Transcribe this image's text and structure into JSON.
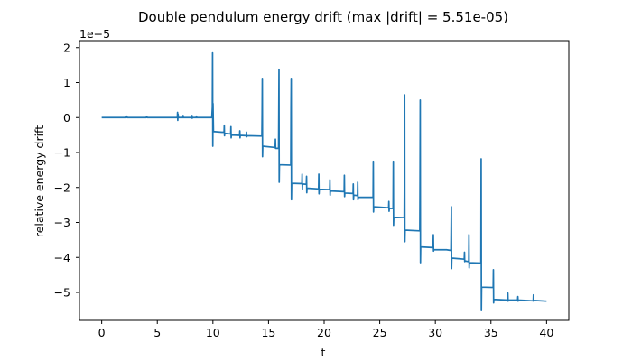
{
  "chart_data": {
    "type": "line",
    "title": "Double pendulum energy drift (max |drift| = 5.51e-05)",
    "xlabel": "t",
    "ylabel": "relative energy drift",
    "y_offset_text": "1e−5",
    "y_scale": 1e-05,
    "xlim": [
      -2,
      42
    ],
    "ylim": [
      -5.8,
      2.2
    ],
    "x_ticks": [
      0,
      5,
      10,
      15,
      20,
      25,
      30,
      35,
      40
    ],
    "x_tick_labels": [
      "0",
      "5",
      "10",
      "15",
      "20",
      "25",
      "30",
      "35",
      "40"
    ],
    "y_ticks": [
      2,
      1,
      0,
      -1,
      -2,
      -3,
      -4,
      -5
    ],
    "y_tick_labels": [
      "2",
      "1",
      "0",
      "−1",
      "−2",
      "−3",
      "−4",
      "−5"
    ],
    "grid": false,
    "legend": "none",
    "series": [
      {
        "color": "#1f77b4",
        "points": [
          [
            0,
            0
          ],
          [
            2.2,
            0
          ],
          [
            2.25,
            0.04
          ],
          [
            2.3,
            0
          ],
          [
            4,
            0
          ],
          [
            4.05,
            0.03
          ],
          [
            4.1,
            0
          ],
          [
            6.8,
            0
          ],
          [
            6.82,
            0.15
          ],
          [
            6.84,
            -0.08
          ],
          [
            6.86,
            0.1
          ],
          [
            6.9,
            0
          ],
          [
            7.3,
            0
          ],
          [
            7.32,
            0.06
          ],
          [
            7.34,
            0
          ],
          [
            8.1,
            0
          ],
          [
            8.12,
            0.06
          ],
          [
            8.14,
            -0.02
          ],
          [
            8.16,
            0
          ],
          [
            8.5,
            0
          ],
          [
            8.52,
            0.04
          ],
          [
            8.54,
            0
          ],
          [
            9.9,
            0
          ],
          [
            9.95,
            0.3
          ],
          [
            9.97,
            1.85
          ],
          [
            9.99,
            -0.82
          ],
          [
            10.01,
            0.4
          ],
          [
            10.05,
            -0.4
          ],
          [
            10.8,
            -0.42
          ],
          [
            11.0,
            -0.42
          ],
          [
            11.02,
            -0.22
          ],
          [
            11.04,
            -0.52
          ],
          [
            11.06,
            -0.45
          ],
          [
            11.6,
            -0.47
          ],
          [
            11.62,
            -0.26
          ],
          [
            11.64,
            -0.58
          ],
          [
            11.66,
            -0.5
          ],
          [
            12.4,
            -0.51
          ],
          [
            12.42,
            -0.38
          ],
          [
            12.44,
            -0.58
          ],
          [
            12.46,
            -0.51
          ],
          [
            13.0,
            -0.52
          ],
          [
            13.02,
            -0.42
          ],
          [
            13.04,
            -0.55
          ],
          [
            13.06,
            -0.52
          ],
          [
            14.4,
            -0.53
          ],
          [
            14.42,
            0.1
          ],
          [
            14.44,
            1.12
          ],
          [
            14.46,
            -1.12
          ],
          [
            14.48,
            -0.82
          ],
          [
            15.4,
            -0.85
          ],
          [
            15.6,
            -0.86
          ],
          [
            15.62,
            -0.62
          ],
          [
            15.64,
            -0.88
          ],
          [
            15.9,
            -0.88
          ],
          [
            15.92,
            0.2
          ],
          [
            15.94,
            1.38
          ],
          [
            15.96,
            -1.85
          ],
          [
            15.98,
            -1.35
          ],
          [
            16.9,
            -1.36
          ],
          [
            17.0,
            -1.36
          ],
          [
            17.02,
            0.3
          ],
          [
            17.04,
            1.12
          ],
          [
            17.06,
            -2.35
          ],
          [
            17.08,
            -1.88
          ],
          [
            18.0,
            -1.89
          ],
          [
            18.02,
            -1.62
          ],
          [
            18.04,
            -2.05
          ],
          [
            18.06,
            -1.9
          ],
          [
            18.4,
            -1.91
          ],
          [
            18.42,
            -1.68
          ],
          [
            18.44,
            -2.15
          ],
          [
            18.46,
            -2.02
          ],
          [
            19.5,
            -2.04
          ],
          [
            19.52,
            -1.62
          ],
          [
            19.54,
            -2.18
          ],
          [
            19.56,
            -2.05
          ],
          [
            20.5,
            -2.06
          ],
          [
            20.52,
            -1.78
          ],
          [
            20.54,
            -2.22
          ],
          [
            20.56,
            -2.1
          ],
          [
            21.8,
            -2.12
          ],
          [
            21.82,
            -1.65
          ],
          [
            21.84,
            -2.26
          ],
          [
            21.86,
            -2.16
          ],
          [
            22.6,
            -2.17
          ],
          [
            22.62,
            -1.9
          ],
          [
            22.64,
            -2.35
          ],
          [
            22.66,
            -2.22
          ],
          [
            23.0,
            -2.23
          ],
          [
            23.02,
            -1.85
          ],
          [
            23.04,
            -2.35
          ],
          [
            23.06,
            -2.28
          ],
          [
            24.4,
            -2.28
          ],
          [
            24.42,
            -1.25
          ],
          [
            24.44,
            -2.7
          ],
          [
            24.46,
            -2.55
          ],
          [
            25.8,
            -2.58
          ],
          [
            25.82,
            -2.4
          ],
          [
            25.84,
            -2.68
          ],
          [
            25.86,
            -2.6
          ],
          [
            26.2,
            -2.6
          ],
          [
            26.22,
            -1.25
          ],
          [
            26.24,
            -3.08
          ],
          [
            26.26,
            -2.85
          ],
          [
            27.1,
            -2.86
          ],
          [
            27.2,
            -2.86
          ],
          [
            27.22,
            -1.6
          ],
          [
            27.24,
            0.65
          ],
          [
            27.26,
            -3.55
          ],
          [
            27.28,
            -3.22
          ],
          [
            28.6,
            -3.24
          ],
          [
            28.62,
            -1.75
          ],
          [
            28.64,
            0.5
          ],
          [
            28.66,
            -4.15
          ],
          [
            28.68,
            -3.7
          ],
          [
            29.8,
            -3.72
          ],
          [
            29.82,
            -3.35
          ],
          [
            29.84,
            -3.82
          ],
          [
            29.86,
            -3.78
          ],
          [
            31.0,
            -3.78
          ],
          [
            31.4,
            -3.8
          ],
          [
            31.42,
            -3.2
          ],
          [
            31.44,
            -2.55
          ],
          [
            31.46,
            -4.32
          ],
          [
            31.48,
            -4.02
          ],
          [
            32.6,
            -4.05
          ],
          [
            32.62,
            -3.85
          ],
          [
            32.64,
            -4.12
          ],
          [
            32.66,
            -4.1
          ],
          [
            33.0,
            -4.12
          ],
          [
            33.02,
            -3.35
          ],
          [
            33.04,
            -4.3
          ],
          [
            33.06,
            -4.15
          ],
          [
            34.0,
            -4.16
          ],
          [
            34.1,
            -4.16
          ],
          [
            34.12,
            -1.18
          ],
          [
            34.14,
            -5.52
          ],
          [
            34.16,
            -4.85
          ],
          [
            35.2,
            -4.86
          ],
          [
            35.22,
            -4.35
          ],
          [
            35.24,
            -5.3
          ],
          [
            35.26,
            -5.2
          ],
          [
            36.5,
            -5.22
          ],
          [
            36.52,
            -5.02
          ],
          [
            36.54,
            -5.25
          ],
          [
            36.56,
            -5.22
          ],
          [
            37.4,
            -5.22
          ],
          [
            37.42,
            -5.12
          ],
          [
            37.44,
            -5.25
          ],
          [
            37.46,
            -5.22
          ],
          [
            38.8,
            -5.24
          ],
          [
            38.82,
            -5.07
          ],
          [
            38.84,
            -5.25
          ],
          [
            38.86,
            -5.23
          ],
          [
            40,
            -5.25
          ]
        ]
      }
    ]
  }
}
